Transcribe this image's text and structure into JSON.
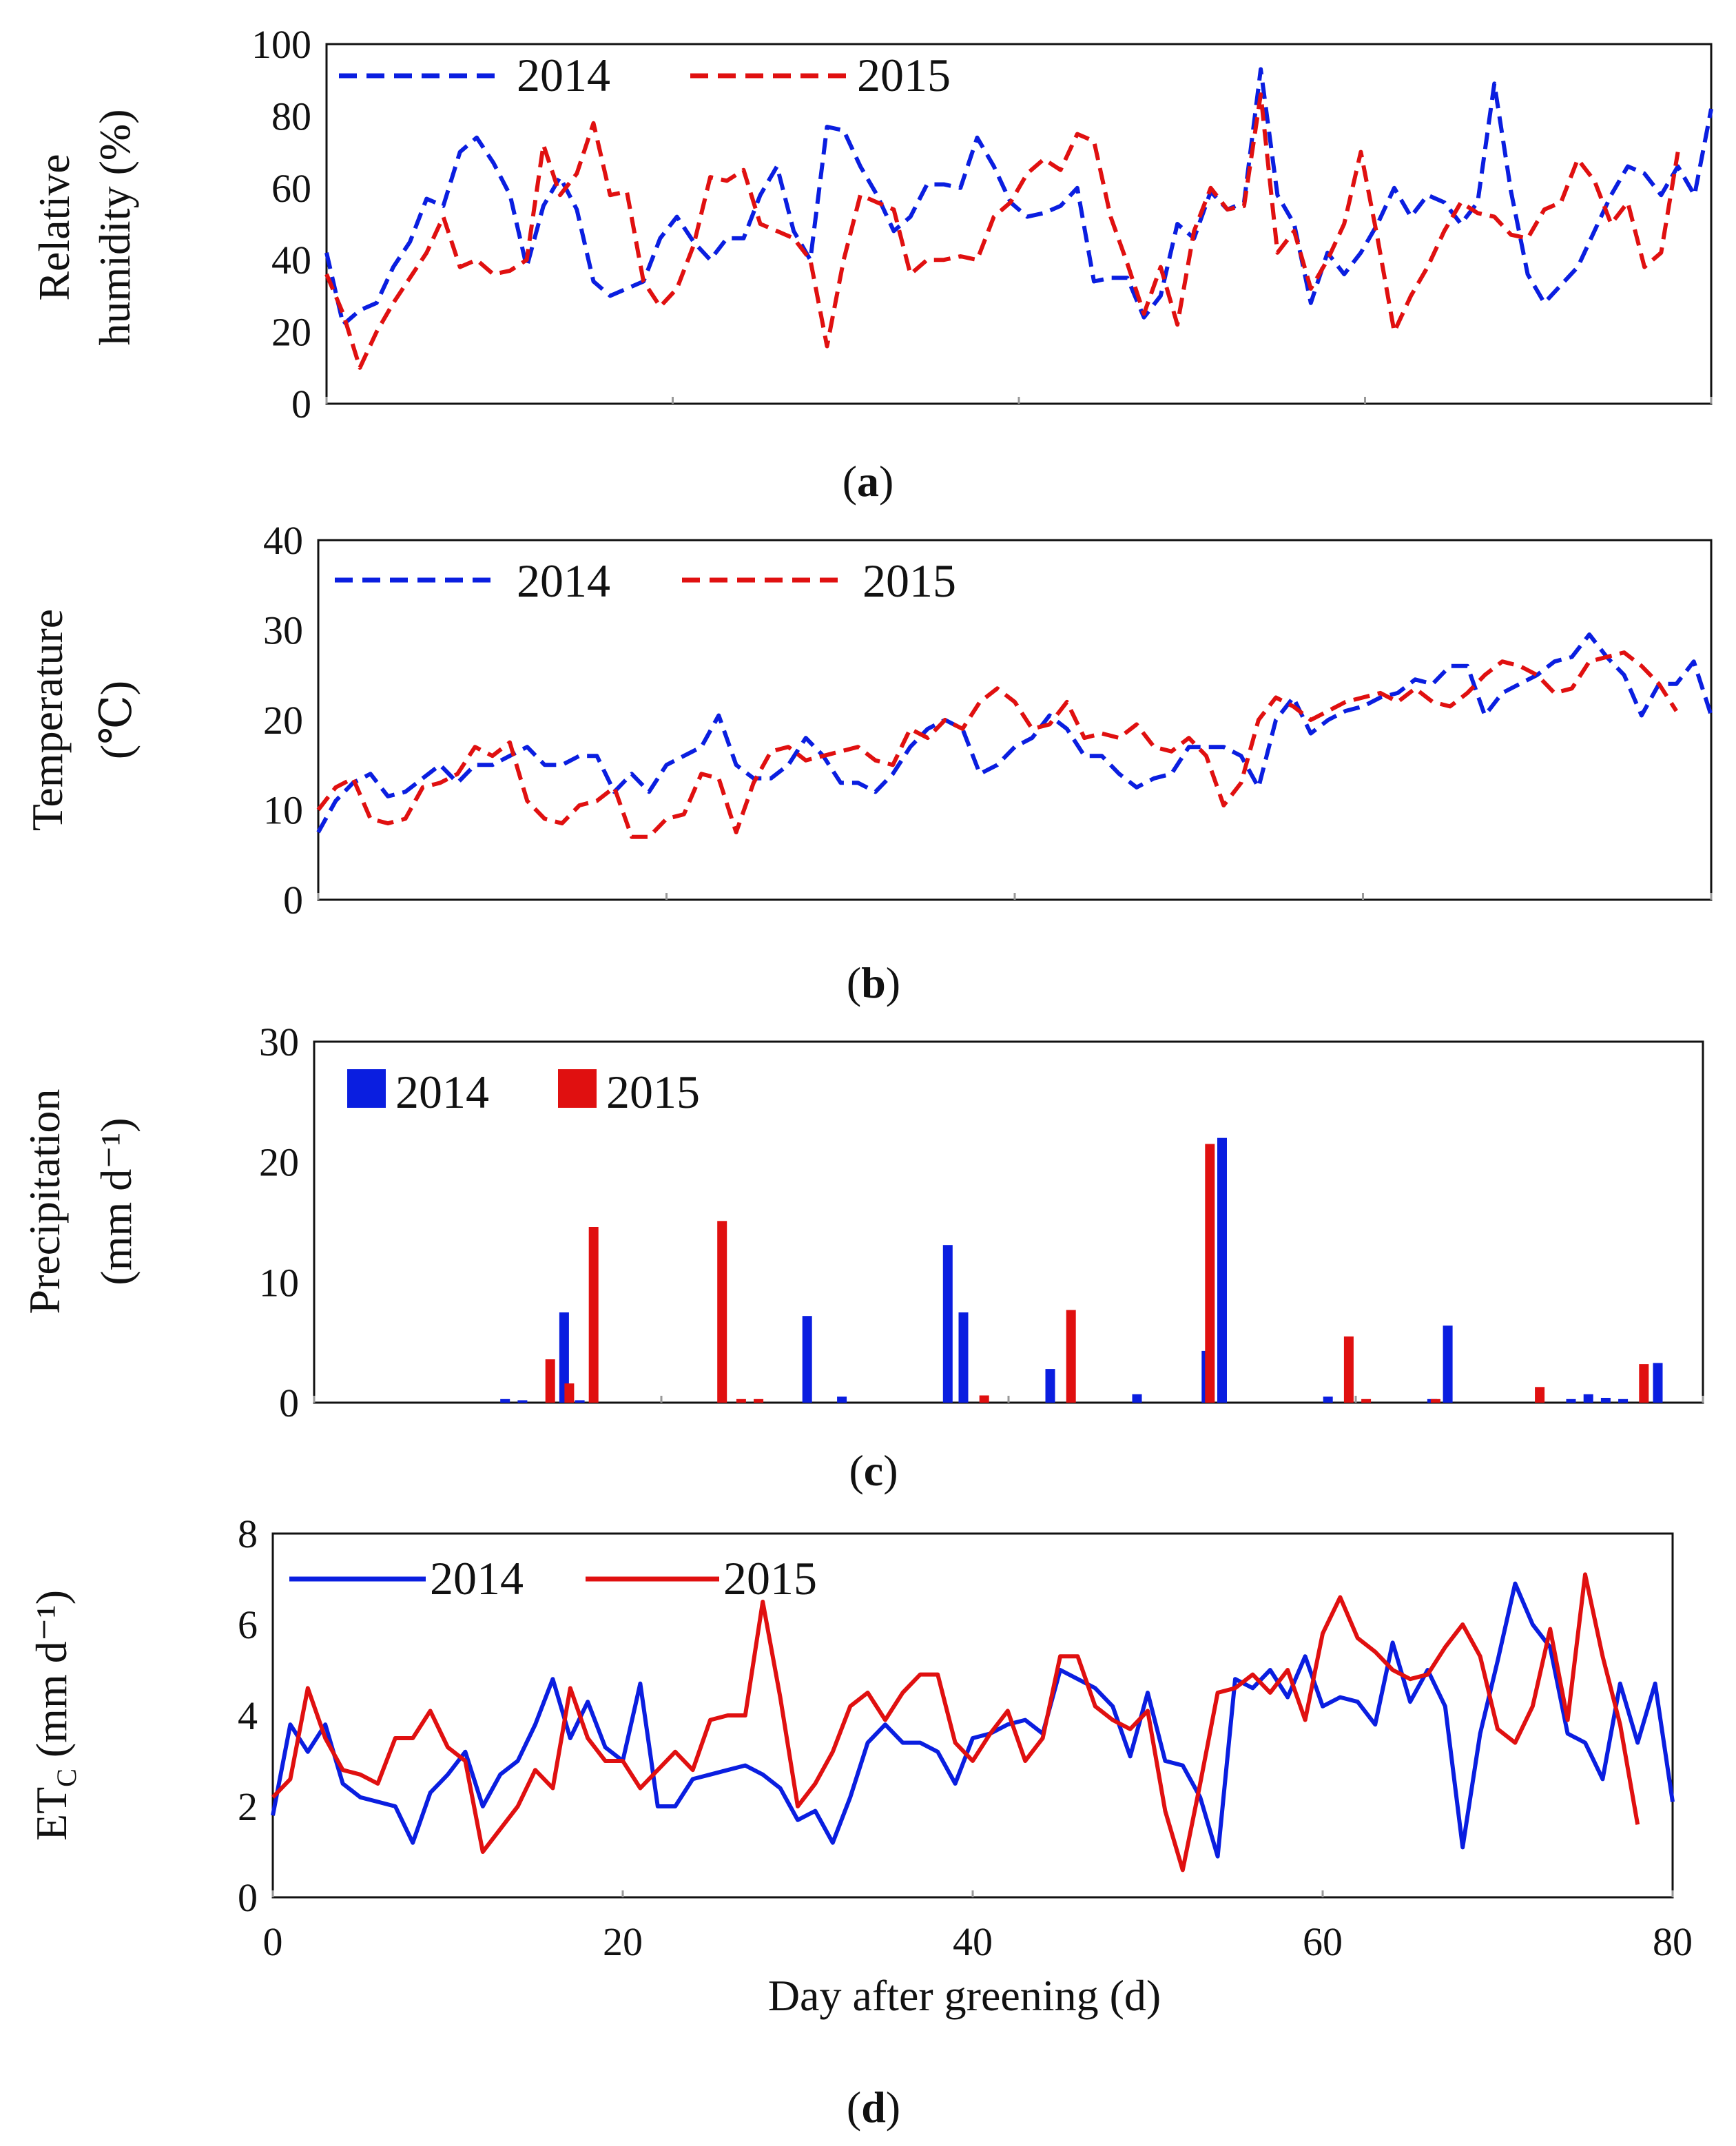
{
  "colors": {
    "y2014": "#0a1ee0",
    "y2015": "#e01010"
  },
  "chart_data": [
    {
      "id": "a",
      "type": "line",
      "style": "dashed",
      "caption_letter": "a",
      "ylabel_lines": [
        "Relative",
        "humidity (%)"
      ],
      "ylim": [
        0,
        100
      ],
      "yticks": [
        0,
        20,
        40,
        60,
        80,
        100
      ],
      "xlim": [
        0,
        80
      ],
      "legend": [
        "2014",
        "2015"
      ],
      "series": [
        {
          "name": "2014",
          "values": [
            42,
            22,
            26,
            28,
            38,
            45,
            57,
            55,
            70,
            74,
            67,
            58,
            38,
            55,
            63,
            54,
            34,
            30,
            32,
            34,
            46,
            52,
            45,
            40,
            46,
            46,
            58,
            66,
            48,
            40,
            77,
            76,
            66,
            58,
            48,
            52,
            61,
            61,
            60,
            74,
            66,
            56,
            52,
            53,
            55,
            60,
            34,
            35,
            35,
            24,
            30,
            50,
            46,
            59,
            54,
            56,
            93,
            58,
            50,
            28,
            42,
            36,
            42,
            50,
            60,
            52,
            58,
            56,
            50,
            56,
            89,
            59,
            36,
            28,
            33,
            38,
            48,
            58,
            66,
            64,
            58,
            66,
            58,
            82
          ]
        },
        {
          "name": "2015",
          "values": [
            36,
            25,
            10,
            20,
            28,
            35,
            42,
            52,
            38,
            40,
            36,
            37,
            40,
            72,
            58,
            64,
            78,
            58,
            59,
            34,
            27,
            32,
            44,
            63,
            62,
            65,
            50,
            48,
            46,
            40,
            16,
            40,
            58,
            56,
            54,
            36,
            40,
            40,
            41,
            40,
            52,
            56,
            64,
            68,
            65,
            75,
            73,
            52,
            39,
            25,
            38,
            22,
            48,
            60,
            54,
            55,
            86,
            42,
            48,
            32,
            40,
            50,
            70,
            46,
            20,
            30,
            38,
            48,
            56,
            53,
            52,
            47,
            46,
            54,
            56,
            68,
            62,
            50,
            56,
            38,
            42,
            70
          ]
        }
      ]
    },
    {
      "id": "b",
      "type": "line",
      "style": "dashed",
      "caption_letter": "b",
      "ylabel_lines": [
        "Temperature",
        "(℃)"
      ],
      "ylim": [
        0,
        40
      ],
      "yticks": [
        0,
        10,
        20,
        30,
        40
      ],
      "xlim": [
        0,
        80
      ],
      "legend": [
        "2014",
        "2015"
      ],
      "series": [
        {
          "name": "2014",
          "values": [
            7.5,
            11,
            13,
            14,
            11.5,
            12,
            13.5,
            15,
            13,
            15,
            15,
            16,
            17,
            15,
            15,
            16,
            16,
            12,
            14,
            12,
            15,
            16,
            17,
            20.5,
            15,
            13.5,
            13.5,
            15,
            18,
            16,
            13,
            13,
            12,
            14,
            17,
            19,
            20,
            19,
            14,
            15,
            17,
            18,
            20.5,
            19,
            16,
            16,
            14,
            12.5,
            13.5,
            14,
            17,
            17,
            17,
            16,
            12.5,
            20,
            22.5,
            18.5,
            20,
            21,
            21.5,
            22.5,
            23,
            24.5,
            24,
            26,
            26,
            20.5,
            23,
            24,
            25,
            26.5,
            27,
            29.5,
            27,
            25,
            20.5,
            24,
            24,
            26.5,
            20.5
          ]
        },
        {
          "name": "2015",
          "values": [
            10,
            12.5,
            13.5,
            9,
            8.5,
            9,
            12.5,
            13,
            14,
            17,
            16,
            17.5,
            11,
            9,
            8.5,
            10.5,
            11,
            12.5,
            7,
            7,
            9,
            9.5,
            14,
            13.5,
            7.5,
            13,
            16.5,
            17,
            15.5,
            16,
            16.5,
            17,
            15.5,
            15,
            19,
            18,
            20,
            19,
            22,
            23.5,
            22,
            19,
            19.5,
            22,
            18,
            18.5,
            18,
            19.5,
            17,
            16.5,
            18,
            16,
            10.5,
            13,
            20,
            22.5,
            21.5,
            20,
            21,
            22,
            22.5,
            23,
            22,
            23.5,
            22,
            21.5,
            23,
            25,
            26.5,
            26,
            25,
            23,
            23.5,
            26.5,
            27,
            27.5,
            26,
            24,
            21
          ]
        }
      ]
    },
    {
      "id": "c",
      "type": "bar",
      "caption_letter": "c",
      "ylabel_lines": [
        "Precipitation",
        "(mm d⁻¹)"
      ],
      "ylim": [
        0,
        30
      ],
      "yticks": [
        0,
        10,
        20,
        30
      ],
      "xlim": [
        0,
        80
      ],
      "legend": [
        "2014",
        "2015"
      ],
      "series": [
        {
          "name": "2014",
          "points": [
            [
              11,
              0.3
            ],
            [
              12,
              0.2
            ],
            [
              14.4,
              7.5
            ],
            [
              15.3,
              0.2
            ],
            [
              28.4,
              7.2
            ],
            [
              30.4,
              0.5
            ],
            [
              36.5,
              13.1
            ],
            [
              37.4,
              7.5
            ],
            [
              42.4,
              2.8
            ],
            [
              47.4,
              0.7
            ],
            [
              51.4,
              4.3
            ],
            [
              52.3,
              22
            ],
            [
              58.4,
              0.5
            ],
            [
              64.4,
              0.3
            ],
            [
              65.3,
              6.4
            ],
            [
              72.4,
              0.3
            ],
            [
              73.4,
              0.7
            ],
            [
              74.4,
              0.4
            ],
            [
              75.4,
              0.3
            ],
            [
              77.4,
              3.3
            ]
          ]
        },
        {
          "name": "2015",
          "points": [
            [
              13.6,
              3.6
            ],
            [
              14.7,
              1.6
            ],
            [
              16.1,
              14.6
            ],
            [
              23.5,
              15.1
            ],
            [
              24.6,
              0.3
            ],
            [
              25.6,
              0.3
            ],
            [
              38.6,
              0.6
            ],
            [
              43.6,
              7.7
            ],
            [
              51.6,
              21.5
            ],
            [
              59.6,
              5.5
            ],
            [
              60.6,
              0.3
            ],
            [
              64.6,
              0.3
            ],
            [
              70.6,
              1.3
            ],
            [
              76.6,
              3.2
            ]
          ]
        }
      ]
    },
    {
      "id": "d",
      "type": "line",
      "style": "solid",
      "caption_letter": "d",
      "ylabel_text": "ET",
      "ylabel_sub": "C",
      "ylabel_unit": " (mm d⁻¹)",
      "xlabel": "Day after greening (d)",
      "ylim": [
        0,
        8
      ],
      "yticks": [
        0,
        2,
        4,
        6,
        8
      ],
      "xlim": [
        0,
        80
      ],
      "xticks": [
        0,
        20,
        40,
        60,
        80
      ],
      "legend": [
        "2014",
        "2015"
      ],
      "series": [
        {
          "name": "2014",
          "values": [
            1.8,
            3.8,
            3.2,
            3.8,
            2.5,
            2.2,
            2.1,
            2.0,
            1.2,
            2.3,
            2.7,
            3.2,
            2.0,
            2.7,
            3.0,
            3.8,
            4.8,
            3.5,
            4.3,
            3.3,
            3.0,
            4.7,
            2.0,
            2.0,
            2.6,
            2.7,
            2.8,
            2.9,
            2.7,
            2.4,
            1.7,
            1.9,
            1.2,
            2.2,
            3.4,
            3.8,
            3.4,
            3.4,
            3.2,
            2.5,
            3.5,
            3.6,
            3.8,
            3.9,
            3.6,
            5.0,
            4.8,
            4.6,
            4.2,
            3.1,
            4.5,
            3.0,
            2.9,
            2.2,
            0.9,
            4.8,
            4.6,
            5.0,
            4.4,
            5.3,
            4.2,
            4.4,
            4.3,
            3.8,
            5.6,
            4.3,
            5.0,
            4.2,
            1.1,
            3.6,
            5.2,
            6.9,
            6.0,
            5.5,
            3.6,
            3.4,
            2.6,
            4.7,
            3.4,
            4.7,
            2.1
          ]
        },
        {
          "name": "2015",
          "values": [
            2.2,
            2.6,
            4.6,
            3.5,
            2.8,
            2.7,
            2.5,
            3.5,
            3.5,
            4.1,
            3.3,
            3.0,
            1.0,
            1.5,
            2.0,
            2.8,
            2.4,
            4.6,
            3.5,
            3.0,
            3.0,
            2.4,
            2.8,
            3.2,
            2.8,
            3.9,
            4.0,
            4.0,
            6.5,
            4.4,
            2.0,
            2.5,
            3.2,
            4.2,
            4.5,
            3.9,
            4.5,
            4.9,
            4.9,
            3.4,
            3.0,
            3.6,
            4.1,
            3.0,
            3.5,
            5.3,
            5.3,
            4.2,
            3.9,
            3.7,
            4.1,
            1.9,
            0.6,
            2.5,
            4.5,
            4.6,
            4.9,
            4.5,
            5.0,
            3.9,
            5.8,
            6.6,
            5.7,
            5.4,
            5.0,
            4.8,
            4.9,
            5.5,
            6.0,
            5.3,
            3.7,
            3.4,
            4.2,
            5.9,
            3.9,
            7.1,
            5.3,
            3.8,
            1.6
          ]
        }
      ]
    }
  ]
}
